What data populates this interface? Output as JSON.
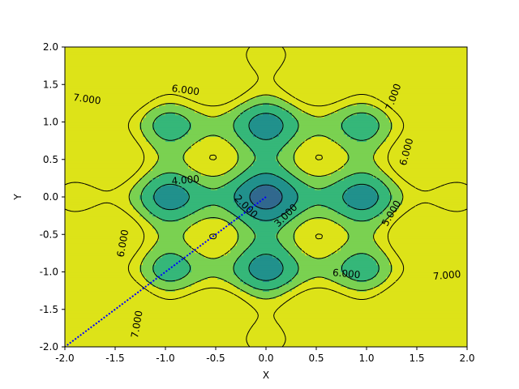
{
  "chart_data": {
    "type": "contour",
    "title": "",
    "xlabel": "X",
    "ylabel": "Y",
    "xlim": [
      -2,
      2
    ],
    "ylim": [
      -2,
      2
    ],
    "x_ticks": [
      "-2.0",
      "-1.5",
      "-1.0",
      "-0.5",
      "0.0",
      "0.5",
      "1.0",
      "1.5",
      "2.0"
    ],
    "y_ticks": [
      "-2.0",
      "-1.5",
      "-1.0",
      "-0.5",
      "0.0",
      "0.5",
      "1.0",
      "1.5",
      "2.0"
    ],
    "grid": false,
    "colormap": "viridis",
    "line_style": "dashed",
    "line_color": "#000000",
    "fill_colors": [
      "#440154",
      "#3e4a89",
      "#31688e",
      "#21918c",
      "#35b779",
      "#7ad151",
      "#dde318"
    ],
    "contour_levels": [
      1,
      2,
      3,
      4,
      5,
      6,
      7
    ],
    "contour_labels": [
      {
        "text": "7.000",
        "x": -1.78,
        "y": 1.3,
        "angle": 8
      },
      {
        "text": "6.000",
        "x": -0.8,
        "y": 1.42,
        "angle": 8
      },
      {
        "text": "7.000",
        "x": 1.27,
        "y": 1.33,
        "angle": -70
      },
      {
        "text": "6.000",
        "x": 1.4,
        "y": 0.6,
        "angle": -75
      },
      {
        "text": "4.000",
        "x": -0.8,
        "y": 0.22,
        "angle": -5
      },
      {
        "text": "2.000",
        "x": -0.2,
        "y": -0.13,
        "angle": 45
      },
      {
        "text": "3.000",
        "x": 0.2,
        "y": -0.25,
        "angle": -45
      },
      {
        "text": "5.000",
        "x": 1.25,
        "y": -0.22,
        "angle": -60
      },
      {
        "text": "6.000",
        "x": -1.42,
        "y": -0.62,
        "angle": -80
      },
      {
        "text": "7.000",
        "x": 1.8,
        "y": -1.05,
        "angle": -5
      },
      {
        "text": "6.000",
        "x": 0.8,
        "y": -1.03,
        "angle": 5
      },
      {
        "text": "7.000",
        "x": -1.28,
        "y": -1.7,
        "angle": -80
      }
    ],
    "series": [
      {
        "type": "path",
        "color": "#0000ff",
        "line_style": "dotted",
        "x": [
          0.0,
          -0.2,
          -0.4,
          -0.6,
          -0.8,
          -1.0,
          -1.2,
          -1.4,
          -1.6,
          -1.8,
          -2.0
        ],
        "y": [
          0.0,
          -0.2,
          -0.4,
          -0.6,
          -0.8,
          -1.0,
          -1.2,
          -1.4,
          -1.6,
          -1.8,
          -2.0
        ]
      }
    ]
  }
}
